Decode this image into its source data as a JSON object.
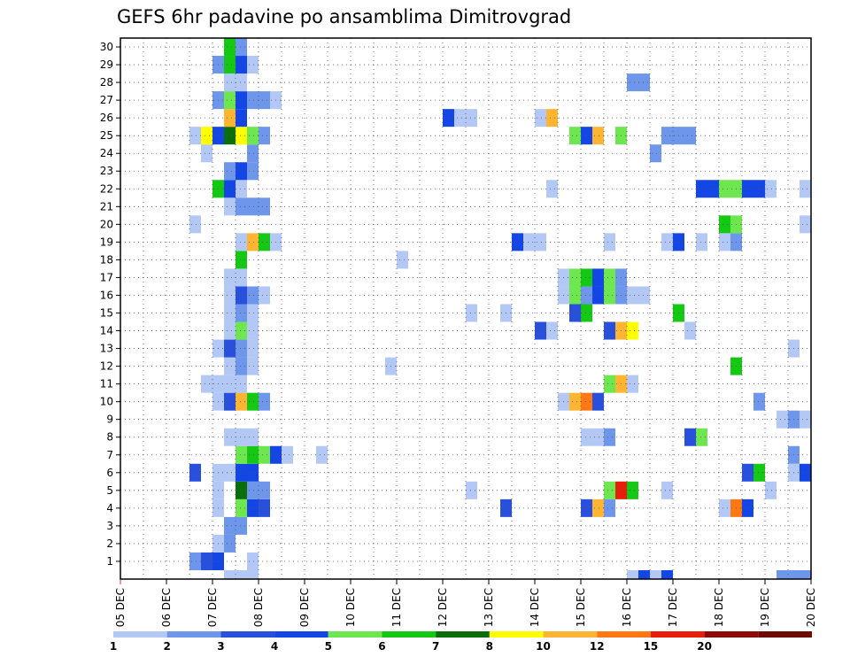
{
  "chart_data": {
    "type": "heatmap",
    "title": "GEFS 6hr padavine po ansamblima Dimitrovgrad",
    "xlabel": "",
    "ylabel": "",
    "x_tick_labels": [
      "05 DEC",
      "06 DEC",
      "07 DEC",
      "08 DEC",
      "09 DEC",
      "10 DEC",
      "11 DEC",
      "12 DEC",
      "13 DEC",
      "14 DEC",
      "15 DEC",
      "16 DEC",
      "17 DEC",
      "18 DEC",
      "19 DEC",
      "20 DEC"
    ],
    "y_tick_labels": [
      "1",
      "2",
      "3",
      "4",
      "5",
      "6",
      "7",
      "8",
      "9",
      "10",
      "11",
      "12",
      "13",
      "14",
      "15",
      "16",
      "17",
      "18",
      "19",
      "20",
      "21",
      "22",
      "23",
      "24",
      "25",
      "26",
      "27",
      "28",
      "29",
      "30"
    ],
    "ensemble_members": 30,
    "steps_per_day": 4,
    "step_hours": 6,
    "xlim_steps": [
      0,
      60
    ],
    "grid": true,
    "legend_placement": "bottom",
    "colorbar": {
      "labels": [
        "1",
        "2",
        "3",
        "4",
        "5",
        "6",
        "7",
        "8",
        "10",
        "12",
        "15",
        "20"
      ],
      "colors": [
        "#b4c8f5",
        "#6e96eb",
        "#2850dc",
        "#1446e6",
        "#6ee650",
        "#14c814",
        "#0a6e0a",
        "#ffff00",
        "#ffb432",
        "#ff7814",
        "#e61e0a",
        "#8c0a0a",
        "#6e0a00"
      ]
    },
    "cells_note": "each cell: [member, time step index from 05 DEC 00UTC, color class index into colorbar.colors]",
    "cells": [
      [
        1,
        6,
        1
      ],
      [
        1,
        7,
        2
      ],
      [
        1,
        8,
        3
      ],
      [
        1,
        11,
        0
      ],
      [
        2,
        8,
        0
      ],
      [
        2,
        9,
        1
      ],
      [
        3,
        9,
        1
      ],
      [
        3,
        10,
        1
      ],
      [
        4,
        8,
        0
      ],
      [
        4,
        10,
        4
      ],
      [
        4,
        11,
        3
      ],
      [
        4,
        12,
        2
      ],
      [
        4,
        33,
        2
      ],
      [
        4,
        40,
        2
      ],
      [
        4,
        41,
        8
      ],
      [
        4,
        42,
        1
      ],
      [
        4,
        52,
        0
      ],
      [
        4,
        53,
        9
      ],
      [
        4,
        54,
        3
      ],
      [
        5,
        8,
        0
      ],
      [
        5,
        10,
        6
      ],
      [
        5,
        11,
        1
      ],
      [
        5,
        12,
        1
      ],
      [
        5,
        30,
        0
      ],
      [
        5,
        42,
        4
      ],
      [
        5,
        43,
        10
      ],
      [
        5,
        44,
        5
      ],
      [
        5,
        47,
        0
      ],
      [
        5,
        56,
        0
      ],
      [
        6,
        6,
        2
      ],
      [
        6,
        8,
        0
      ],
      [
        6,
        9,
        0
      ],
      [
        6,
        10,
        3
      ],
      [
        6,
        11,
        3
      ],
      [
        6,
        54,
        2
      ],
      [
        6,
        55,
        5
      ],
      [
        6,
        58,
        0
      ],
      [
        6,
        59,
        3
      ],
      [
        7,
        10,
        4
      ],
      [
        7,
        11,
        5
      ],
      [
        7,
        12,
        4
      ],
      [
        7,
        13,
        3
      ],
      [
        7,
        14,
        0
      ],
      [
        7,
        17,
        0
      ],
      [
        7,
        58,
        1
      ],
      [
        8,
        9,
        0
      ],
      [
        8,
        10,
        0
      ],
      [
        8,
        11,
        0
      ],
      [
        8,
        40,
        0
      ],
      [
        8,
        41,
        0
      ],
      [
        8,
        42,
        1
      ],
      [
        8,
        49,
        2
      ],
      [
        8,
        50,
        4
      ],
      [
        9,
        57,
        0
      ],
      [
        9,
        58,
        1
      ],
      [
        9,
        59,
        0
      ],
      [
        10,
        8,
        0
      ],
      [
        10,
        9,
        2
      ],
      [
        10,
        10,
        8
      ],
      [
        10,
        11,
        5
      ],
      [
        10,
        12,
        1
      ],
      [
        10,
        38,
        0
      ],
      [
        10,
        39,
        8
      ],
      [
        10,
        40,
        9
      ],
      [
        10,
        41,
        2
      ],
      [
        10,
        55,
        1
      ],
      [
        11,
        7,
        0
      ],
      [
        11,
        8,
        0
      ],
      [
        11,
        9,
        0
      ],
      [
        11,
        10,
        0
      ],
      [
        11,
        42,
        4
      ],
      [
        11,
        43,
        8
      ],
      [
        11,
        44,
        0
      ],
      [
        12,
        9,
        0
      ],
      [
        12,
        10,
        1
      ],
      [
        12,
        11,
        0
      ],
      [
        12,
        23,
        0
      ],
      [
        12,
        53,
        5
      ],
      [
        13,
        8,
        0
      ],
      [
        13,
        9,
        2
      ],
      [
        13,
        10,
        1
      ],
      [
        13,
        11,
        0
      ],
      [
        13,
        58,
        0
      ],
      [
        14,
        9,
        0
      ],
      [
        14,
        10,
        4
      ],
      [
        14,
        11,
        0
      ],
      [
        14,
        36,
        2
      ],
      [
        14,
        37,
        0
      ],
      [
        14,
        42,
        2
      ],
      [
        14,
        43,
        8
      ],
      [
        14,
        44,
        7
      ],
      [
        14,
        49,
        0
      ],
      [
        15,
        9,
        0
      ],
      [
        15,
        10,
        1
      ],
      [
        15,
        11,
        0
      ],
      [
        15,
        30,
        0
      ],
      [
        15,
        33,
        0
      ],
      [
        15,
        39,
        2
      ],
      [
        15,
        40,
        5
      ],
      [
        15,
        48,
        5
      ],
      [
        16,
        9,
        0
      ],
      [
        16,
        10,
        2
      ],
      [
        16,
        11,
        1
      ],
      [
        16,
        12,
        0
      ],
      [
        16,
        38,
        0
      ],
      [
        16,
        39,
        4
      ],
      [
        16,
        40,
        1
      ],
      [
        16,
        41,
        3
      ],
      [
        16,
        42,
        4
      ],
      [
        16,
        43,
        1
      ],
      [
        16,
        44,
        0
      ],
      [
        16,
        45,
        0
      ],
      [
        17,
        9,
        0
      ],
      [
        17,
        10,
        0
      ],
      [
        17,
        38,
        0
      ],
      [
        17,
        39,
        4
      ],
      [
        17,
        40,
        5
      ],
      [
        17,
        41,
        3
      ],
      [
        17,
        42,
        4
      ],
      [
        17,
        43,
        1
      ],
      [
        18,
        10,
        5
      ],
      [
        18,
        24,
        0
      ],
      [
        19,
        10,
        0
      ],
      [
        19,
        11,
        8
      ],
      [
        19,
        12,
        5
      ],
      [
        19,
        13,
        0
      ],
      [
        19,
        34,
        3
      ],
      [
        19,
        35,
        0
      ],
      [
        19,
        36,
        0
      ],
      [
        19,
        42,
        0
      ],
      [
        19,
        47,
        0
      ],
      [
        19,
        48,
        3
      ],
      [
        19,
        50,
        0
      ],
      [
        19,
        52,
        0
      ],
      [
        19,
        53,
        1
      ],
      [
        20,
        6,
        0
      ],
      [
        20,
        52,
        5
      ],
      [
        20,
        53,
        4
      ],
      [
        20,
        59,
        0
      ],
      [
        21,
        9,
        0
      ],
      [
        21,
        10,
        1
      ],
      [
        21,
        11,
        1
      ],
      [
        21,
        12,
        1
      ],
      [
        22,
        8,
        5
      ],
      [
        22,
        9,
        3
      ],
      [
        22,
        10,
        0
      ],
      [
        22,
        37,
        0
      ],
      [
        22,
        50,
        3
      ],
      [
        22,
        51,
        3
      ],
      [
        22,
        52,
        4
      ],
      [
        22,
        53,
        4
      ],
      [
        22,
        54,
        3
      ],
      [
        22,
        55,
        3
      ],
      [
        22,
        56,
        0
      ],
      [
        22,
        59,
        0
      ],
      [
        23,
        9,
        1
      ],
      [
        23,
        10,
        3
      ],
      [
        23,
        11,
        1
      ],
      [
        24,
        7,
        0
      ],
      [
        24,
        11,
        1
      ],
      [
        24,
        46,
        1
      ],
      [
        25,
        6,
        0
      ],
      [
        25,
        7,
        7
      ],
      [
        25,
        8,
        3
      ],
      [
        25,
        9,
        6
      ],
      [
        25,
        10,
        7
      ],
      [
        25,
        11,
        4
      ],
      [
        25,
        12,
        1
      ],
      [
        25,
        39,
        4
      ],
      [
        25,
        40,
        3
      ],
      [
        25,
        41,
        8
      ],
      [
        25,
        43,
        4
      ],
      [
        25,
        47,
        1
      ],
      [
        25,
        48,
        1
      ],
      [
        25,
        49,
        1
      ],
      [
        26,
        9,
        8
      ],
      [
        26,
        10,
        3
      ],
      [
        26,
        28,
        3
      ],
      [
        26,
        29,
        0
      ],
      [
        26,
        30,
        0
      ],
      [
        26,
        36,
        0
      ],
      [
        26,
        37,
        8
      ],
      [
        27,
        8,
        1
      ],
      [
        27,
        9,
        4
      ],
      [
        27,
        10,
        3
      ],
      [
        27,
        11,
        1
      ],
      [
        27,
        12,
        1
      ],
      [
        27,
        13,
        0
      ],
      [
        28,
        9,
        0
      ],
      [
        28,
        10,
        0
      ],
      [
        28,
        44,
        1
      ],
      [
        28,
        45,
        1
      ],
      [
        29,
        8,
        1
      ],
      [
        29,
        9,
        5
      ],
      [
        29,
        10,
        3
      ],
      [
        29,
        11,
        0
      ],
      [
        30,
        9,
        5
      ],
      [
        30,
        10,
        1
      ],
      [
        0,
        9,
        0
      ],
      [
        0,
        10,
        0
      ],
      [
        0,
        11,
        0
      ],
      [
        0,
        44,
        0
      ],
      [
        0,
        45,
        3
      ],
      [
        0,
        46,
        0
      ],
      [
        0,
        47,
        3
      ],
      [
        0,
        57,
        1
      ],
      [
        0,
        58,
        1
      ],
      [
        0,
        59,
        1
      ]
    ]
  }
}
